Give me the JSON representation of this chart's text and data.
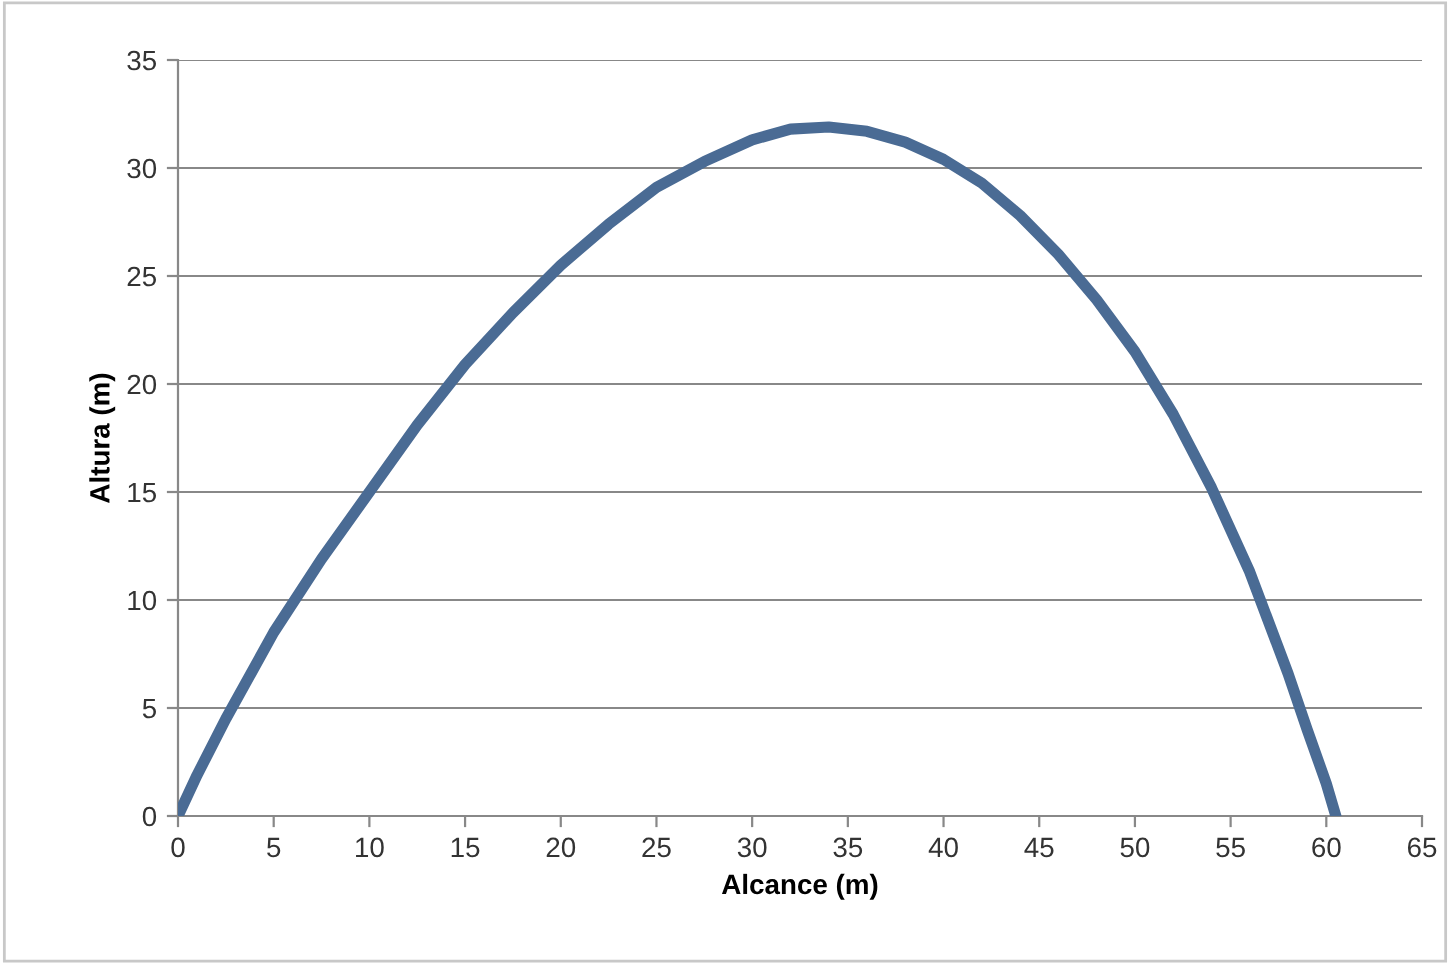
{
  "chart_data": {
    "type": "line",
    "xlabel": "Alcance (m)",
    "ylabel": "Altura (m)",
    "xlim": [
      0,
      65
    ],
    "xticks": [
      0,
      5,
      10,
      15,
      20,
      25,
      30,
      35,
      40,
      45,
      50,
      55,
      60,
      65
    ],
    "ylim": [
      0,
      35
    ],
    "yticks": [
      0,
      5,
      10,
      15,
      20,
      25,
      30,
      35
    ],
    "grid": "y",
    "legend": false,
    "marker": "none",
    "line_style": "solid",
    "series": [
      {
        "color": "#4a6b94",
        "x": [
          0,
          1,
          2.5,
          5,
          7.5,
          10,
          12.5,
          15,
          17.5,
          20,
          22.5,
          25,
          27.5,
          30,
          32,
          34,
          36,
          38,
          40,
          42,
          44,
          46,
          48,
          50,
          52,
          54,
          56,
          58,
          59,
          60,
          60.5
        ],
        "values": [
          0,
          1.9,
          4.5,
          8.5,
          11.9,
          15,
          18.1,
          20.9,
          23.3,
          25.5,
          27.4,
          29.1,
          30.3,
          31.3,
          31.8,
          31.9,
          31.7,
          31.2,
          30.4,
          29.3,
          27.8,
          26,
          23.9,
          21.5,
          18.6,
          15.2,
          11.3,
          6.6,
          4,
          1.5,
          0
        ]
      }
    ]
  }
}
